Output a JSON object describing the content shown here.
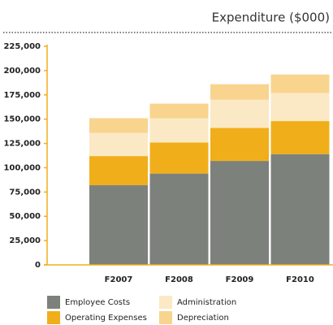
{
  "chart_data": {
    "type": "stacked_bar",
    "title": "Expenditure ($000)",
    "categories": [
      "F2007",
      "F2008",
      "F2009",
      "F2010"
    ],
    "series": [
      {
        "name": "Employee Costs",
        "color": "#7d817c",
        "values": [
          82000,
          94000,
          107000,
          114000
        ]
      },
      {
        "name": "Operating Expenses",
        "color": "#f0ae1a",
        "values": [
          30000,
          32000,
          34000,
          34000
        ]
      },
      {
        "name": "Administration",
        "color": "#fbe9c5",
        "values": [
          24000,
          25000,
          29000,
          29000
        ]
      },
      {
        "name": "Depreciation",
        "color": "#f8d48e",
        "values": [
          15000,
          15000,
          16000,
          19000
        ]
      }
    ],
    "ylim": [
      0,
      225000
    ],
    "yticks": [
      0,
      {
        "value": 25000,
        "label": "25,000"
      },
      {
        "value": 50000,
        "label": "50,000"
      },
      {
        "value": 75000,
        "label": "75,000"
      },
      {
        "value": 100000,
        "label": "100,000"
      },
      {
        "value": 125000,
        "label": "125,000"
      },
      {
        "value": 150000,
        "label": "150,000"
      },
      {
        "value": 175000,
        "label": "175,000"
      },
      {
        "value": 200000,
        "label": "200,000"
      },
      {
        "value": 225000,
        "label": "225,000"
      }
    ]
  }
}
